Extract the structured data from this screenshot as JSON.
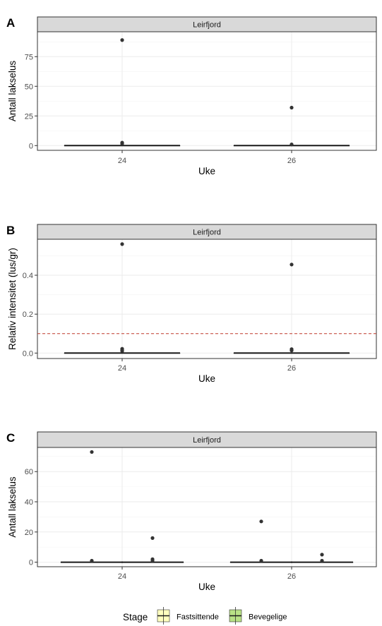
{
  "chart_data": [
    {
      "type": "box",
      "panel_label": "A",
      "facet": "Leirfjord",
      "xlabel": "Uke",
      "ylabel": "Antall lakselus",
      "categories": [
        "24",
        "26"
      ],
      "ylim": [
        -4,
        96
      ],
      "yticks": [
        0,
        25,
        50,
        75
      ],
      "ytick_labels": [
        "0",
        "25",
        "50",
        "75"
      ],
      "dodged": false,
      "groups": [
        {
          "category": "24",
          "median": 0,
          "q1": 0,
          "q3": 0,
          "outliers": [
            89,
            2.5,
            1.5
          ]
        },
        {
          "category": "26",
          "median": 0,
          "q1": 0,
          "q3": 0,
          "outliers": [
            32,
            1
          ]
        }
      ]
    },
    {
      "type": "box",
      "panel_label": "B",
      "facet": "Leirfjord",
      "xlabel": "Uke",
      "ylabel": "Relativ intensitet (lus/gr)",
      "categories": [
        "24",
        "26"
      ],
      "ylim": [
        -0.028,
        0.585
      ],
      "yticks": [
        0.0,
        0.2,
        0.4
      ],
      "ytick_labels": [
        "0.0",
        "0.2",
        "0.4"
      ],
      "reference_line": 0.1,
      "dodged": false,
      "groups": [
        {
          "category": "24",
          "median": 0,
          "q1": 0,
          "q3": 0,
          "outliers": [
            0.56,
            0.022,
            0.015,
            0.01
          ]
        },
        {
          "category": "26",
          "median": 0,
          "q1": 0,
          "q3": 0,
          "outliers": [
            0.455,
            0.02,
            0.013
          ]
        }
      ]
    },
    {
      "type": "box",
      "panel_label": "C",
      "facet": "Leirfjord",
      "xlabel": "Uke",
      "ylabel": "Antall lakselus",
      "categories": [
        "24",
        "26"
      ],
      "ylim": [
        -3,
        76
      ],
      "yticks": [
        0,
        20,
        40,
        60
      ],
      "ytick_labels": [
        "0",
        "20",
        "40",
        "60"
      ],
      "dodged": true,
      "groups": [
        {
          "category": "24",
          "stage": "Fastsittende",
          "median": 0,
          "q1": 0,
          "q3": 0,
          "outliers": [
            73,
            1
          ]
        },
        {
          "category": "24",
          "stage": "Bevegelige",
          "median": 0,
          "q1": 0,
          "q3": 0,
          "outliers": [
            16,
            2,
            1
          ]
        },
        {
          "category": "26",
          "stage": "Fastsittende",
          "median": 0,
          "q1": 0,
          "q3": 0,
          "outliers": [
            27,
            1
          ]
        },
        {
          "category": "26",
          "stage": "Bevegelige",
          "median": 0,
          "q1": 0,
          "q3": 0,
          "outliers": [
            5,
            1
          ]
        }
      ]
    }
  ],
  "legend": {
    "title": "Stage",
    "placement": "bottom",
    "items": [
      {
        "label": "Fastsittende",
        "color": "#ffffbf"
      },
      {
        "label": "Bevegelige",
        "color": "#b8e186"
      }
    ]
  },
  "colors": {
    "reference_line": "#c0392b",
    "strip": "#d9d9d9",
    "grid": "#ebebeb",
    "points": "#333333"
  }
}
